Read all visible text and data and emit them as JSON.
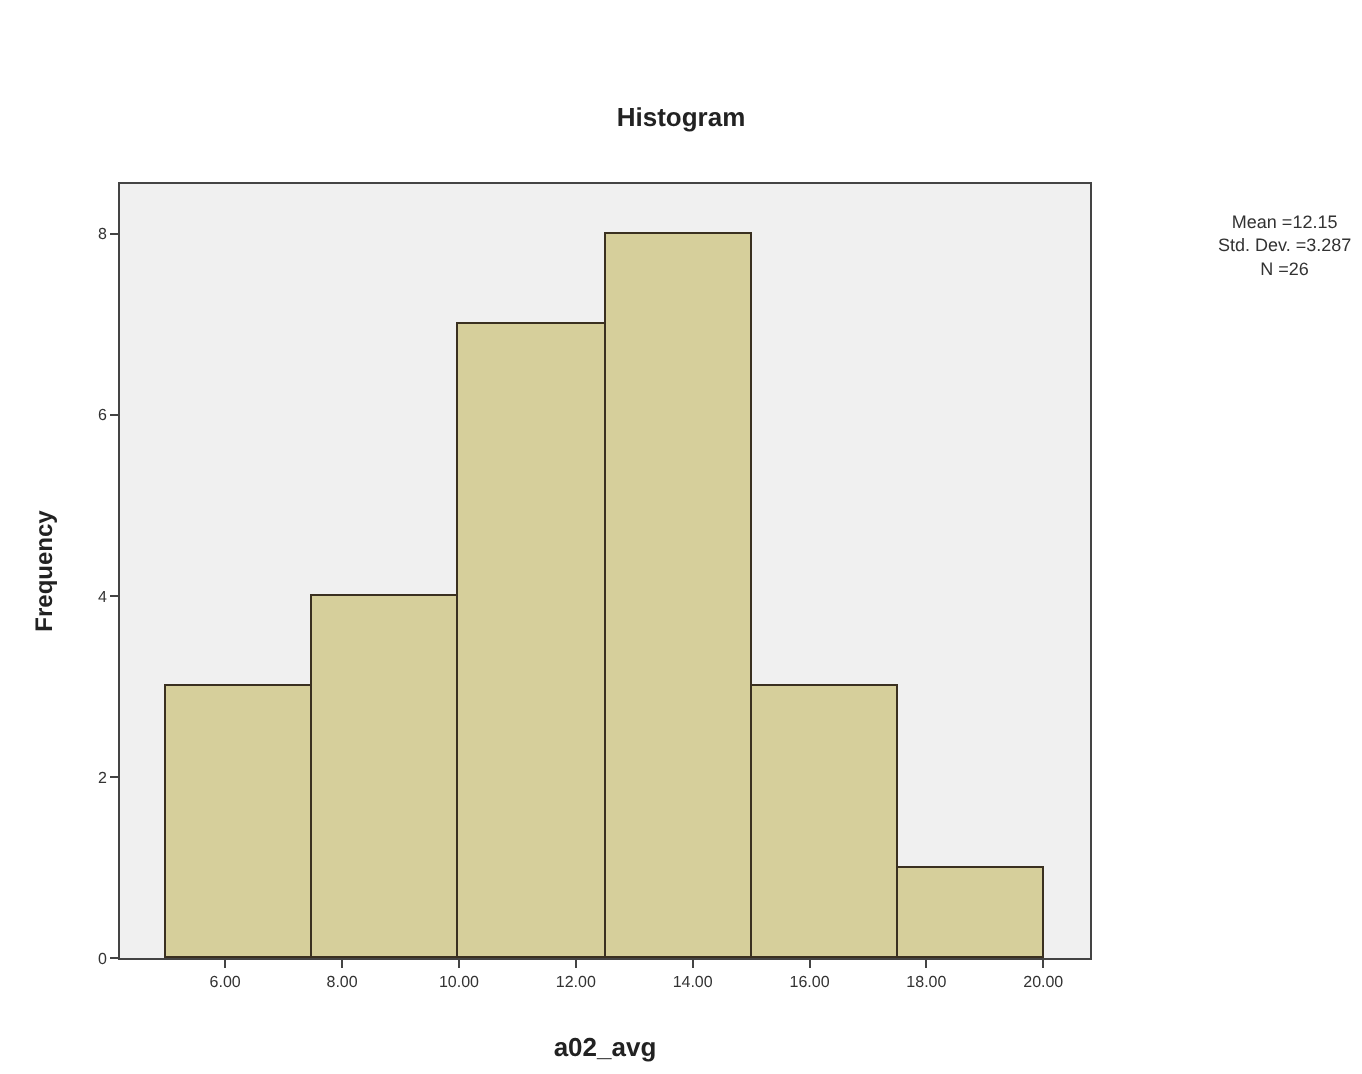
{
  "chart_data": {
    "type": "histogram",
    "title": "Histogram",
    "xlabel": "a02_avg",
    "ylabel": "Frequency",
    "bins": [
      5,
      7.5,
      10,
      12.5,
      15,
      17.5,
      20
    ],
    "values": [
      3,
      4,
      7,
      8,
      3,
      1
    ],
    "color": "#d6cf9b",
    "xlim": [
      4.2,
      20.8
    ],
    "xticks": [
      {
        "value": 6,
        "label": "6.00"
      },
      {
        "value": 8,
        "label": "8.00"
      },
      {
        "value": 10,
        "label": "10.00"
      },
      {
        "value": 12,
        "label": "12.00"
      },
      {
        "value": 14,
        "label": "14.00"
      },
      {
        "value": 16,
        "label": "16.00"
      },
      {
        "value": 18,
        "label": "18.00"
      },
      {
        "value": 20,
        "label": "20.00"
      }
    ],
    "ylim": [
      0,
      8.55
    ],
    "yticks": [
      0,
      2,
      4,
      6,
      8
    ],
    "grid": false,
    "legend": false,
    "annotations": [
      "Mean =12.15\nStd. Dev. =3.287\nN =26"
    ]
  }
}
